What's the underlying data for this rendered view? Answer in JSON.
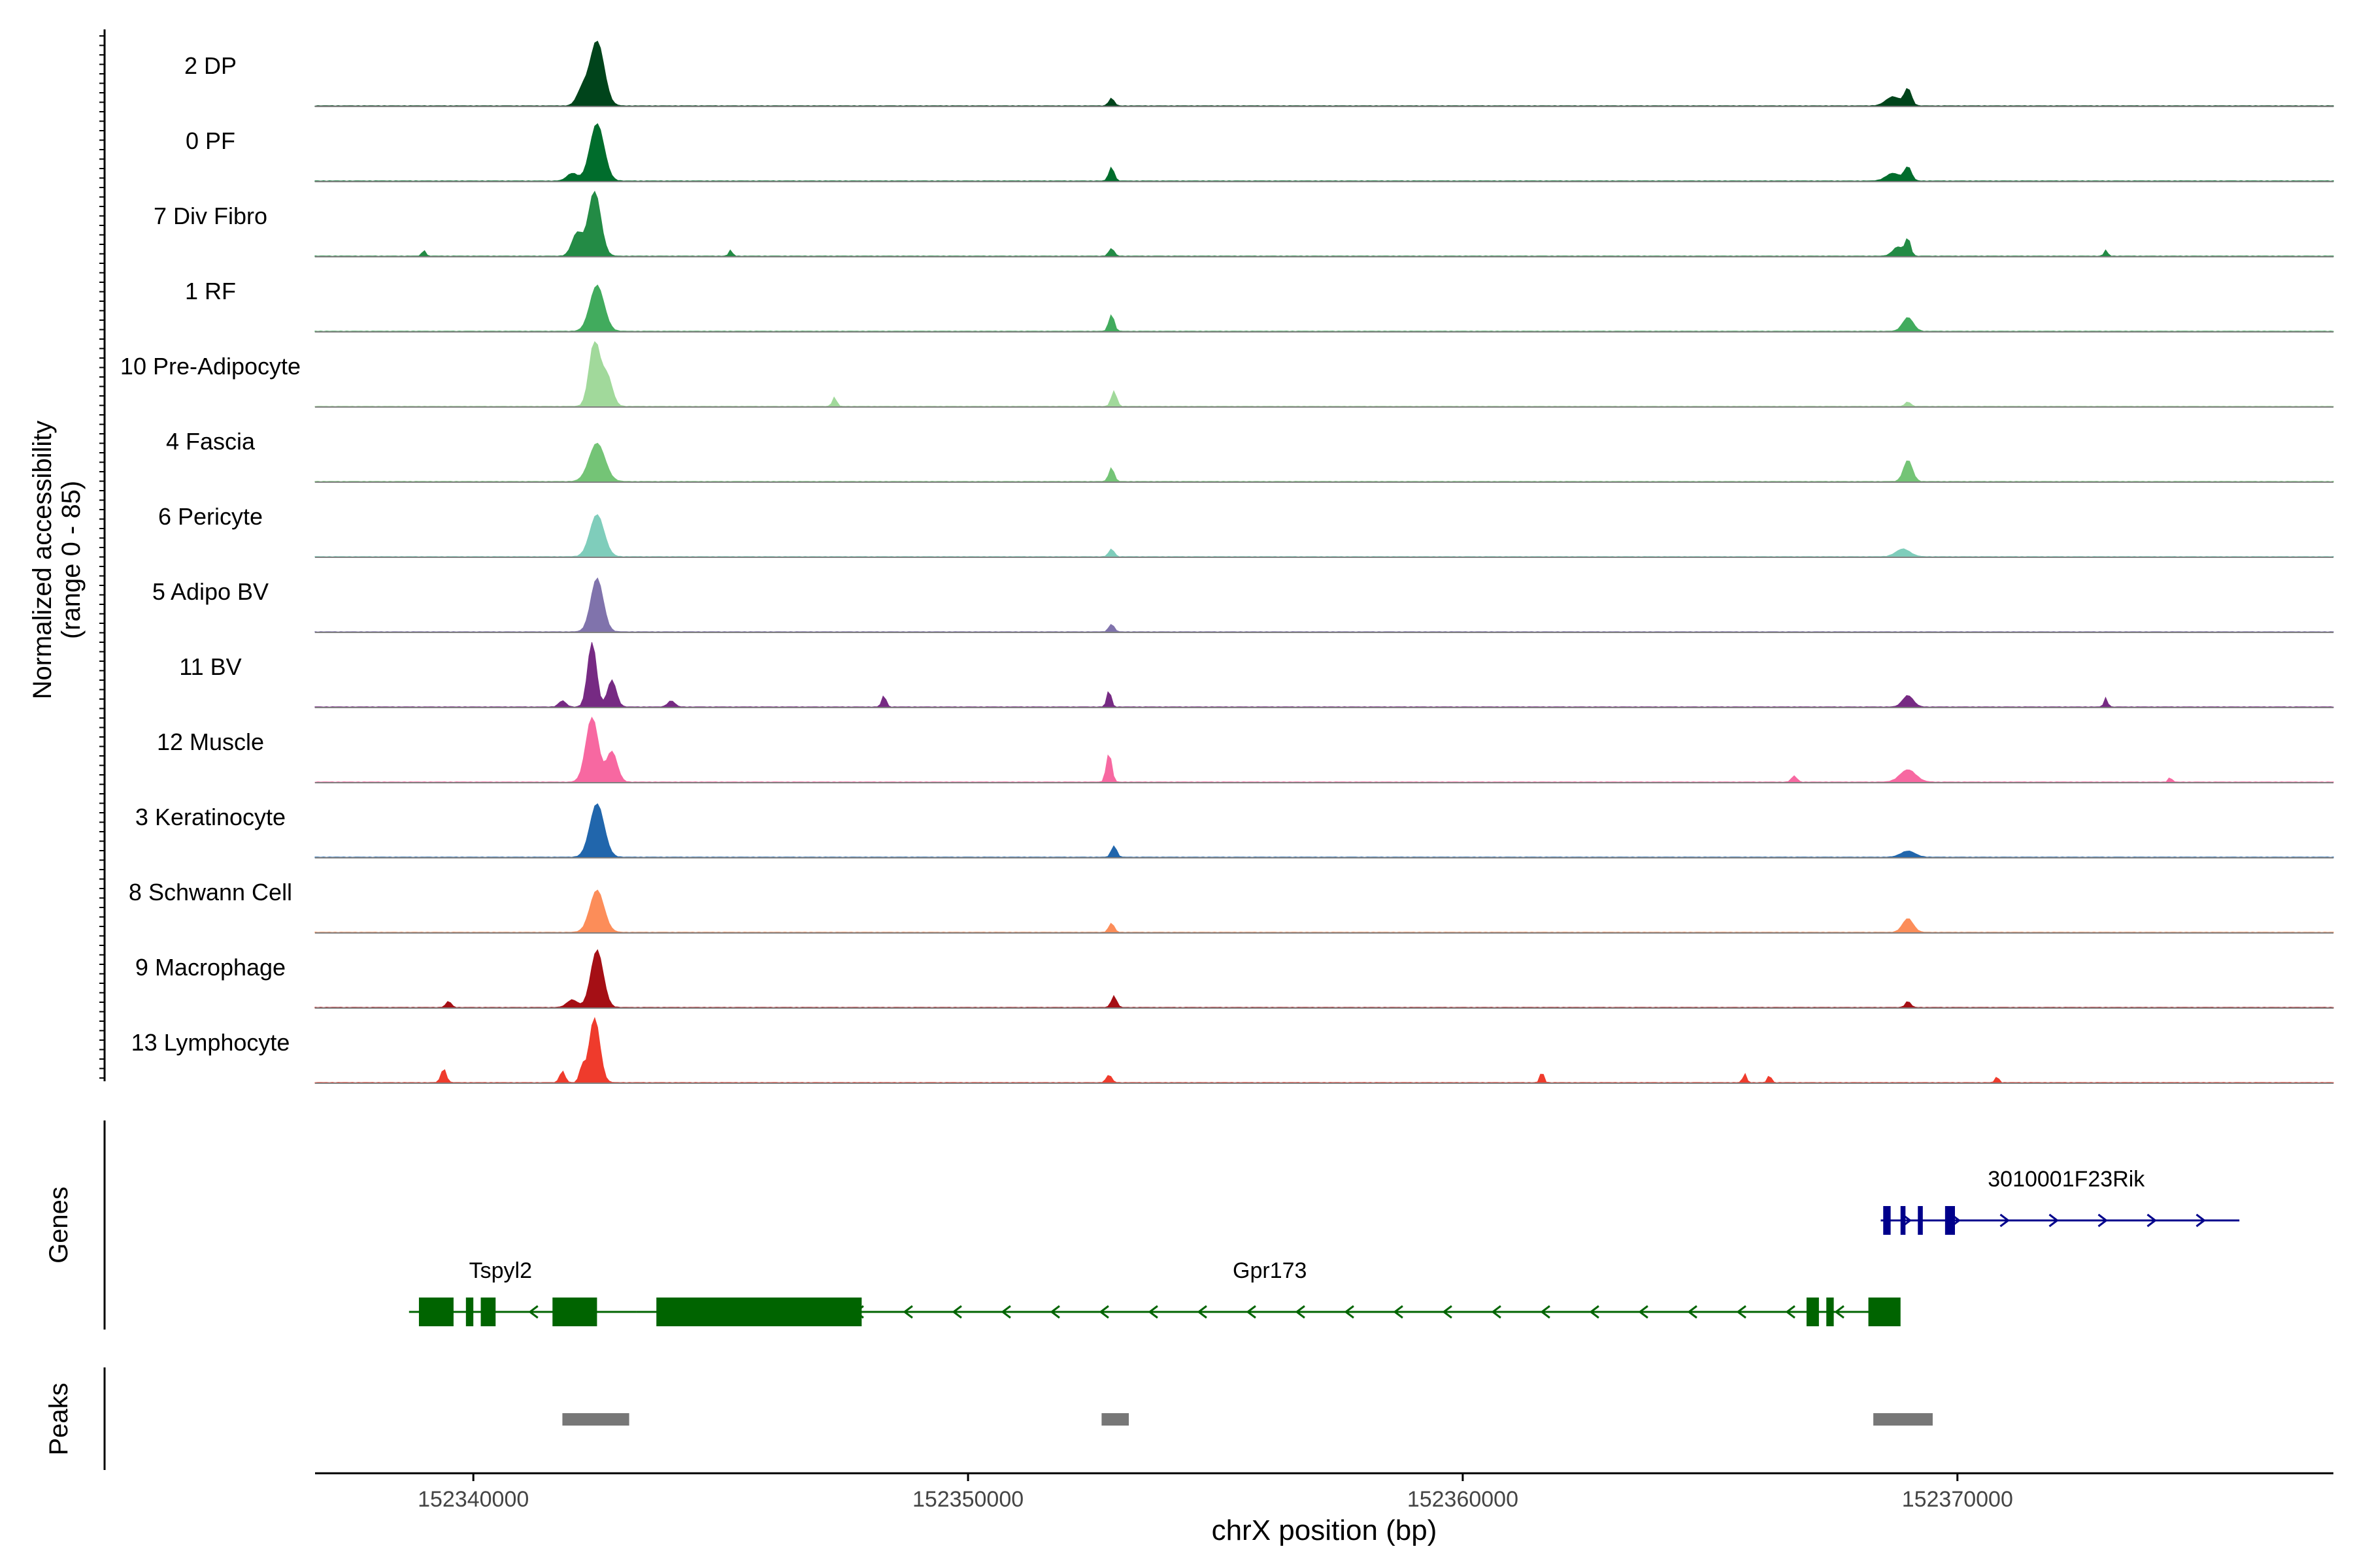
{
  "chart_data": {
    "type": "area",
    "title": "",
    "xlabel": "chrX position (bp)",
    "ylabel_line1": "Normalized accessibility",
    "ylabel_line2": "(range 0 - 85)",
    "ylim": [
      0,
      85
    ],
    "xlim": [
      152336800,
      152377600
    ],
    "x_ticks": [
      152340000,
      152350000,
      152360000,
      152370000
    ],
    "x_tick_labels": [
      "152340000",
      "152350000",
      "152360000",
      "152370000"
    ],
    "panel_labels": {
      "genes": "Genes",
      "peaks": "Peaks"
    },
    "series": [
      {
        "name": "2 DP",
        "color": "#00441b",
        "peaks": [
          [
            152342500,
            85,
            400
          ],
          [
            152342200,
            20,
            300
          ],
          [
            152352900,
            10,
            150
          ],
          [
            152368700,
            12,
            400
          ],
          [
            152369000,
            22,
            200
          ]
        ]
      },
      {
        "name": "0 PF",
        "color": "#006d2c",
        "peaks": [
          [
            152342500,
            75,
            400
          ],
          [
            152342000,
            10,
            300
          ],
          [
            152352900,
            18,
            150
          ],
          [
            152368700,
            10,
            400
          ],
          [
            152369000,
            18,
            200
          ]
        ]
      },
      {
        "name": "7 Div Fibro",
        "color": "#238b45",
        "peaks": [
          [
            152342450,
            85,
            350
          ],
          [
            152342100,
            30,
            300
          ],
          [
            152339000,
            8,
            100
          ],
          [
            152345200,
            8,
            100
          ],
          [
            152352900,
            10,
            150
          ],
          [
            152368800,
            12,
            300
          ],
          [
            152369000,
            22,
            150
          ],
          [
            152373000,
            8,
            100
          ]
        ]
      },
      {
        "name": "1 RF",
        "color": "#41ab5d",
        "peaks": [
          [
            152342500,
            60,
            400
          ],
          [
            152352900,
            22,
            150
          ],
          [
            152369000,
            18,
            300
          ]
        ]
      },
      {
        "name": "10 Pre-Adipocyte",
        "color": "#a1d99b",
        "peaks": [
          [
            152342450,
            85,
            300
          ],
          [
            152342700,
            40,
            300
          ],
          [
            152347300,
            12,
            120
          ],
          [
            152352950,
            20,
            150
          ],
          [
            152369000,
            6,
            150
          ]
        ]
      },
      {
        "name": "4 Fascia",
        "color": "#74c476",
        "peaks": [
          [
            152342500,
            50,
            450
          ],
          [
            152352900,
            18,
            150
          ],
          [
            152369000,
            28,
            250
          ]
        ]
      },
      {
        "name": "6 Pericyte",
        "color": "#7fcdbb",
        "peaks": [
          [
            152342500,
            55,
            400
          ],
          [
            152352900,
            10,
            150
          ],
          [
            152368900,
            10,
            400
          ]
        ]
      },
      {
        "name": "5 Adipo BV",
        "color": "#8073ac",
        "peaks": [
          [
            152342500,
            70,
            350
          ],
          [
            152352900,
            10,
            150
          ]
        ]
      },
      {
        "name": "11 BV",
        "color": "#762a83",
        "peaks": [
          [
            152342400,
            85,
            250
          ],
          [
            152342800,
            35,
            250
          ],
          [
            152341800,
            8,
            200
          ],
          [
            152344000,
            8,
            200
          ],
          [
            152348300,
            15,
            120
          ],
          [
            152352850,
            22,
            120
          ],
          [
            152369000,
            15,
            300
          ],
          [
            152373000,
            12,
            100
          ]
        ]
      },
      {
        "name": "12 Muscle",
        "color": "#f768a1",
        "peaks": [
          [
            152342400,
            85,
            350
          ],
          [
            152342800,
            40,
            300
          ],
          [
            152352850,
            38,
            150
          ],
          [
            152366700,
            8,
            150
          ],
          [
            152369000,
            16,
            450
          ],
          [
            152374300,
            6,
            100
          ]
        ]
      },
      {
        "name": "3 Keratinocyte",
        "color": "#2166ac",
        "peaks": [
          [
            152342500,
            70,
            400
          ],
          [
            152352950,
            15,
            150
          ],
          [
            152369000,
            8,
            400
          ]
        ]
      },
      {
        "name": "8 Schwann Cell",
        "color": "#fc8d59",
        "peaks": [
          [
            152342500,
            55,
            400
          ],
          [
            152352900,
            12,
            150
          ],
          [
            152369000,
            18,
            300
          ]
        ]
      },
      {
        "name": "9 Macrophage",
        "color": "#a50f15",
        "peaks": [
          [
            152342500,
            75,
            350
          ],
          [
            152342000,
            10,
            300
          ],
          [
            152352950,
            15,
            150
          ],
          [
            152339500,
            8,
            150
          ],
          [
            152369000,
            8,
            150
          ]
        ]
      },
      {
        "name": "13 Lymphocyte",
        "color": "#ef3b2c",
        "peaks": [
          [
            152342450,
            85,
            300
          ],
          [
            152342200,
            20,
            150
          ],
          [
            152339400,
            18,
            150
          ],
          [
            152341800,
            15,
            150
          ],
          [
            152352850,
            10,
            150
          ],
          [
            152361600,
            15,
            100
          ],
          [
            152365700,
            12,
            100
          ],
          [
            152366200,
            10,
            100
          ],
          [
            152370800,
            8,
            100
          ]
        ]
      }
    ],
    "genes": [
      {
        "name": "Tspyl2",
        "color": "#006400",
        "strand": "-",
        "start": 152338700,
        "end": 152343300,
        "exons": [
          [
            152338900,
            152339600
          ],
          [
            152339850,
            152340000
          ],
          [
            152340150,
            152340450
          ],
          [
            152341600,
            152342500
          ]
        ]
      },
      {
        "name": "Gpr173",
        "color": "#006400",
        "strand": "-",
        "start": 152343300,
        "end": 152368800,
        "exons": [
          [
            152343700,
            152347850
          ],
          [
            152366950,
            152367200
          ],
          [
            152367350,
            152367500
          ],
          [
            152368200,
            152368850
          ]
        ]
      },
      {
        "name": "3010001F23Rik",
        "color": "#00008b",
        "strand": "+",
        "start": 152368450,
        "end": 152375700,
        "exons": [
          [
            152368500,
            152368650
          ],
          [
            152368850,
            152368950
          ],
          [
            152369200,
            152369300
          ],
          [
            152369750,
            152369950
          ]
        ]
      }
    ],
    "peaks": [
      [
        152341800,
        152343150
      ],
      [
        152352700,
        152353250
      ],
      [
        152368300,
        152369500
      ]
    ]
  }
}
